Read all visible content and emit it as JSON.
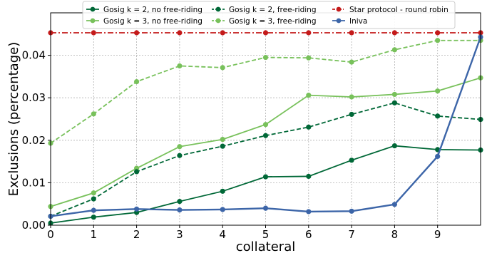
{
  "chart_data": {
    "type": "line",
    "title": "",
    "xlabel": "collateral",
    "ylabel": "Exclusions (percentage)",
    "xlim": [
      0,
      10
    ],
    "ylim": [
      0,
      0.05
    ],
    "x_ticks": [
      0,
      1,
      2,
      3,
      4,
      5,
      6,
      7,
      8,
      9
    ],
    "y_ticks": [
      0.0,
      0.01,
      0.02,
      0.03,
      0.04
    ],
    "y_tick_labels": [
      "0.00",
      "0.01",
      "0.02",
      "0.03",
      "0.04"
    ],
    "grid": true,
    "legend_position": "top-center",
    "x": [
      0,
      1,
      2,
      3,
      4,
      5,
      6,
      7,
      8,
      9,
      10
    ],
    "series": [
      {
        "name": "Gosig k = 2, no free-riding",
        "color": "#006837",
        "linestyle": "solid",
        "values": [
          0.0005,
          0.0019,
          0.003,
          0.0056,
          0.008,
          0.0114,
          0.0115,
          0.0153,
          0.0187,
          0.0178,
          0.0177
        ]
      },
      {
        "name": "Gosig k = 3, no free-riding",
        "color": "#78c15b",
        "linestyle": "solid",
        "values": [
          0.0044,
          0.0076,
          0.0134,
          0.0185,
          0.0202,
          0.0237,
          0.0306,
          0.0302,
          0.0308,
          0.0316,
          0.0347
        ]
      },
      {
        "name": "Gosig k = 2, free-riding",
        "color": "#006837",
        "linestyle": "dashed",
        "values": [
          0.0021,
          0.0062,
          0.0126,
          0.0164,
          0.0186,
          0.0211,
          0.0231,
          0.0261,
          0.0288,
          0.0257,
          0.0249
        ]
      },
      {
        "name": "Gosig k = 3, free-riding",
        "color": "#78c15b",
        "linestyle": "dashed",
        "values": [
          0.0193,
          0.0262,
          0.0338,
          0.0375,
          0.0371,
          0.0395,
          0.0394,
          0.0384,
          0.0413,
          0.0435,
          0.0435
        ]
      },
      {
        "name": "Star protocol - round robin",
        "color": "#c41a1a",
        "linestyle": "dashdot",
        "values": [
          0.0453,
          0.0453,
          0.0453,
          0.0453,
          0.0453,
          0.0453,
          0.0453,
          0.0453,
          0.0453,
          0.0453,
          0.0453
        ]
      },
      {
        "name": "Iniva",
        "color": "#3c65a8",
        "linestyle": "solid",
        "values": [
          0.0021,
          0.0035,
          0.0038,
          0.0036,
          0.0037,
          0.004,
          0.0032,
          0.0033,
          0.0049,
          0.0162,
          0.0443
        ]
      }
    ]
  }
}
